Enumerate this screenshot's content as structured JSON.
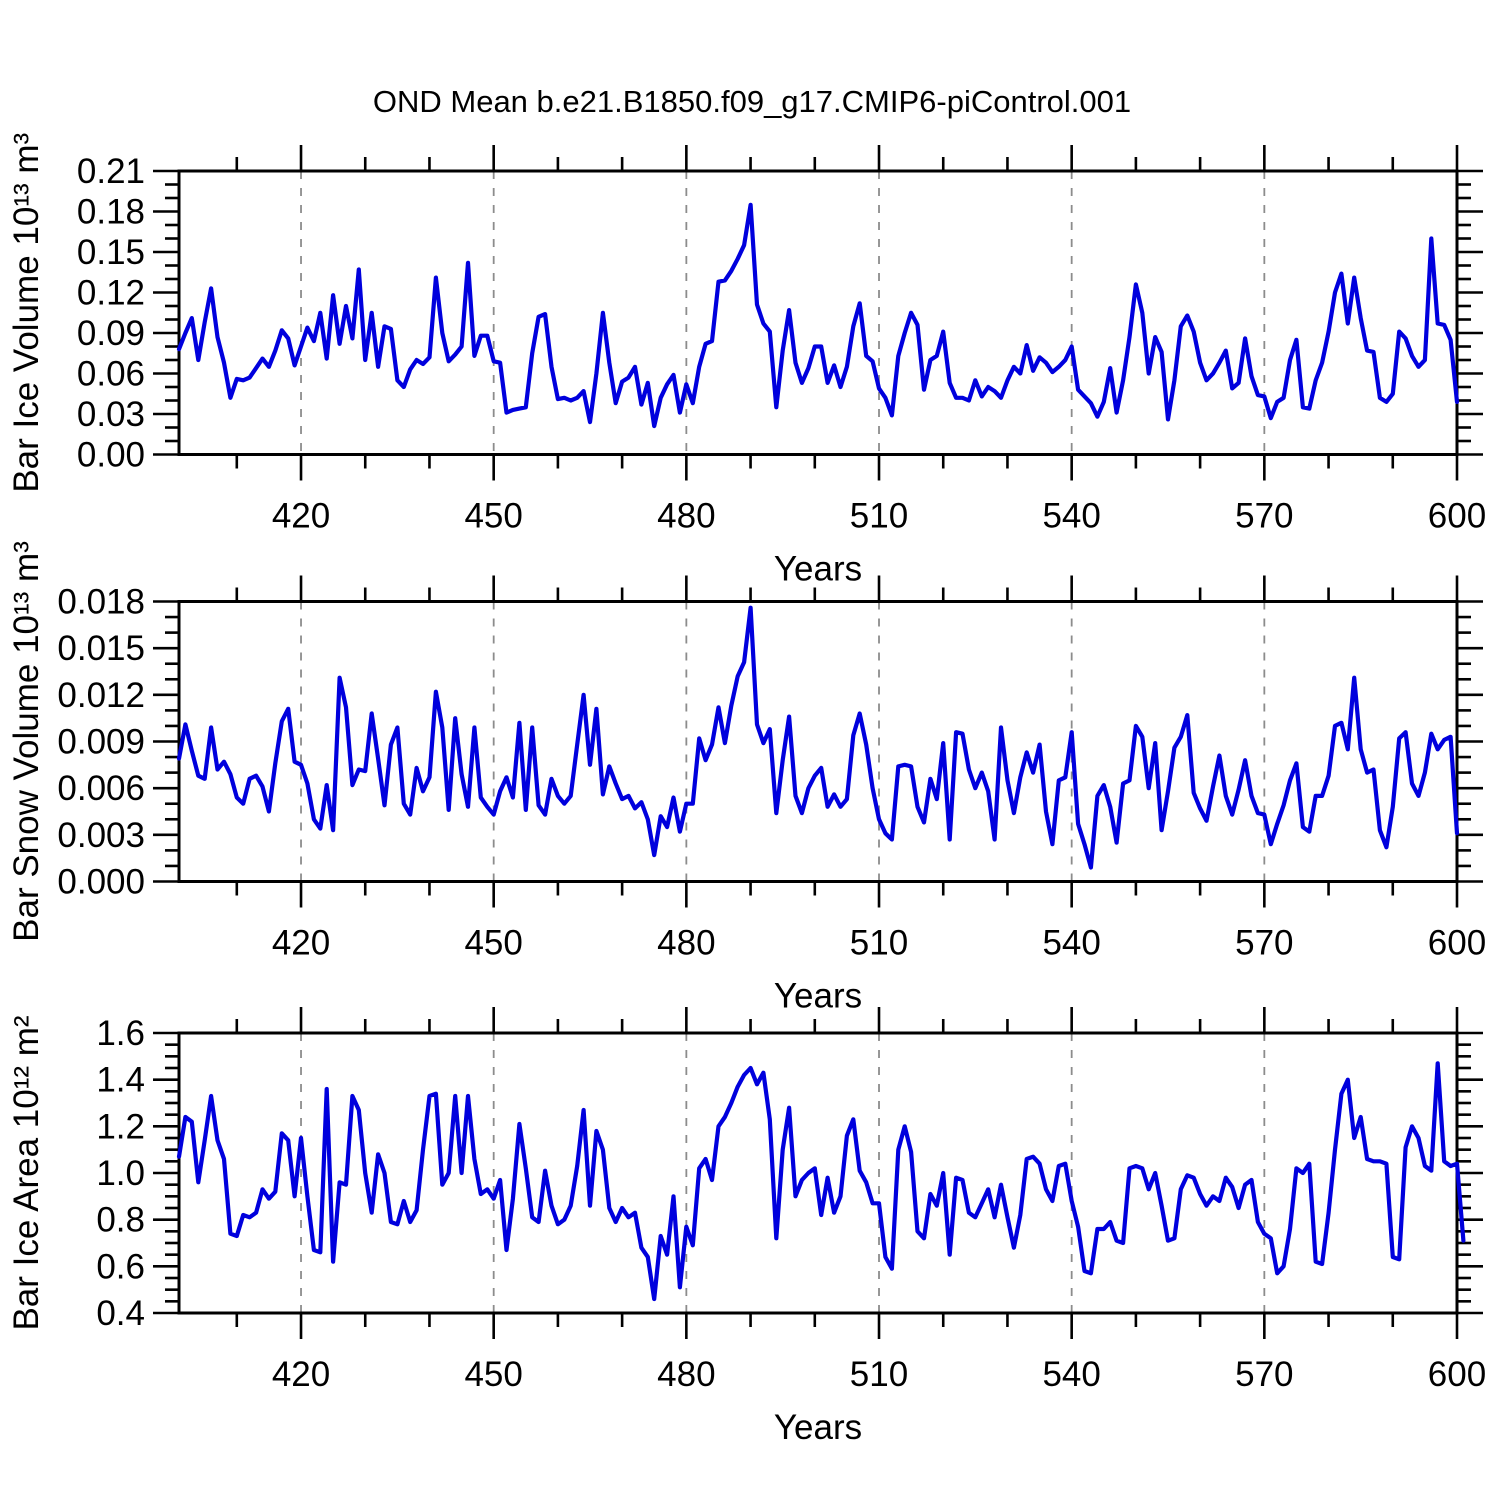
{
  "title": "OND Mean b.e21.B1850.f09_g17.CMIP6-piControl.001",
  "chart_data": {
    "type": "line",
    "title": "OND Mean b.e21.B1850.f09_g17.CMIP6-piControl.001",
    "xlabel": "Years",
    "x_start": 401,
    "x_end": 600,
    "xticks_major": [
      420,
      450,
      480,
      510,
      540,
      570,
      600
    ],
    "xtick_minor_step": 10,
    "grid": true,
    "legend_position": "none",
    "line_color": "#0000dd",
    "gridline_color": "#8c8c8c",
    "panels": [
      {
        "name": "ice-volume",
        "ylabel": "Bar Ice Volume 10¹³ m³",
        "ylim": [
          0,
          0.21
        ],
        "ytick_labels": [
          "0.00",
          "0.03",
          "0.06",
          "0.09",
          "0.12",
          "0.15",
          "0.18",
          "0.21"
        ],
        "ytick_minor_step": 0.01,
        "values": [
          0.078,
          0.09,
          0.101,
          0.07,
          0.098,
          0.123,
          0.087,
          0.068,
          0.042,
          0.056,
          0.055,
          0.057,
          0.064,
          0.071,
          0.065,
          0.077,
          0.092,
          0.086,
          0.066,
          0.08,
          0.094,
          0.084,
          0.105,
          0.071,
          0.118,
          0.082,
          0.11,
          0.086,
          0.137,
          0.07,
          0.105,
          0.065,
          0.095,
          0.093,
          0.055,
          0.05,
          0.063,
          0.07,
          0.067,
          0.072,
          0.131,
          0.09,
          0.069,
          0.074,
          0.08,
          0.142,
          0.073,
          0.088,
          0.088,
          0.069,
          0.068,
          0.031,
          0.033,
          0.034,
          0.035,
          0.075,
          0.102,
          0.104,
          0.065,
          0.041,
          0.042,
          0.04,
          0.042,
          0.047,
          0.024,
          0.06,
          0.105,
          0.068,
          0.038,
          0.054,
          0.057,
          0.065,
          0.037,
          0.053,
          0.021,
          0.042,
          0.052,
          0.059,
          0.031,
          0.052,
          0.038,
          0.065,
          0.082,
          0.084,
          0.128,
          0.129,
          0.136,
          0.145,
          0.155,
          0.185,
          0.111,
          0.097,
          0.091,
          0.035,
          0.077,
          0.107,
          0.068,
          0.053,
          0.064,
          0.08,
          0.08,
          0.053,
          0.066,
          0.05,
          0.065,
          0.095,
          0.112,
          0.073,
          0.069,
          0.049,
          0.042,
          0.029,
          0.073,
          0.09,
          0.105,
          0.096,
          0.048,
          0.07,
          0.073,
          0.091,
          0.053,
          0.042,
          0.042,
          0.04,
          0.055,
          0.043,
          0.05,
          0.047,
          0.042,
          0.055,
          0.065,
          0.06,
          0.081,
          0.062,
          0.072,
          0.068,
          0.061,
          0.065,
          0.07,
          0.08,
          0.048,
          0.043,
          0.038,
          0.028,
          0.039,
          0.064,
          0.031,
          0.055,
          0.087,
          0.126,
          0.105,
          0.06,
          0.087,
          0.076,
          0.026,
          0.055,
          0.095,
          0.103,
          0.091,
          0.068,
          0.055,
          0.06,
          0.068,
          0.077,
          0.049,
          0.053,
          0.086,
          0.058,
          0.044,
          0.043,
          0.027,
          0.039,
          0.042,
          0.07,
          0.085,
          0.035,
          0.034,
          0.055,
          0.068,
          0.091,
          0.12,
          0.134,
          0.097,
          0.131,
          0.101,
          0.077,
          0.076,
          0.042,
          0.039,
          0.045,
          0.091,
          0.086,
          0.073,
          0.065,
          0.07,
          0.16,
          0.097,
          0.096,
          0.085,
          0.039
        ]
      },
      {
        "name": "snow-volume",
        "ylabel": "Bar Snow Volume 10¹³ m³",
        "ylim": [
          0,
          0.018
        ],
        "ytick_labels": [
          "0.000",
          "0.003",
          "0.006",
          "0.009",
          "0.012",
          "0.015",
          "0.018"
        ],
        "ytick_minor_step": 0.001,
        "values": [
          0.0079,
          0.0101,
          0.0084,
          0.0068,
          0.0066,
          0.0099,
          0.0072,
          0.0077,
          0.0069,
          0.0054,
          0.005,
          0.0066,
          0.0068,
          0.0061,
          0.0045,
          0.0076,
          0.0103,
          0.0111,
          0.0077,
          0.0075,
          0.0063,
          0.004,
          0.0034,
          0.0062,
          0.0033,
          0.0131,
          0.0112,
          0.0062,
          0.0072,
          0.0071,
          0.0108,
          0.0079,
          0.0049,
          0.0088,
          0.0099,
          0.005,
          0.0043,
          0.0073,
          0.0058,
          0.0067,
          0.0122,
          0.0099,
          0.0046,
          0.0105,
          0.0069,
          0.0048,
          0.0099,
          0.0054,
          0.0048,
          0.0043,
          0.0058,
          0.0067,
          0.0054,
          0.0102,
          0.0046,
          0.0099,
          0.0049,
          0.0043,
          0.0066,
          0.0055,
          0.005,
          0.0055,
          0.0088,
          0.012,
          0.0075,
          0.0111,
          0.0056,
          0.0074,
          0.0063,
          0.0053,
          0.0055,
          0.0047,
          0.0051,
          0.004,
          0.0017,
          0.0042,
          0.0035,
          0.0054,
          0.0032,
          0.005,
          0.005,
          0.0092,
          0.0078,
          0.0088,
          0.0112,
          0.0089,
          0.0113,
          0.0132,
          0.0141,
          0.0176,
          0.0101,
          0.0089,
          0.0098,
          0.0044,
          0.0078,
          0.0106,
          0.0055,
          0.0044,
          0.006,
          0.0068,
          0.0073,
          0.0048,
          0.0056,
          0.0048,
          0.0053,
          0.0094,
          0.0108,
          0.0088,
          0.006,
          0.004,
          0.0031,
          0.0027,
          0.0074,
          0.0075,
          0.0074,
          0.0048,
          0.0038,
          0.0066,
          0.0053,
          0.0089,
          0.0027,
          0.0096,
          0.0095,
          0.0072,
          0.006,
          0.007,
          0.0058,
          0.0027,
          0.0099,
          0.0065,
          0.0044,
          0.0067,
          0.0083,
          0.007,
          0.0088,
          0.0045,
          0.0024,
          0.0065,
          0.0067,
          0.0096,
          0.0037,
          0.0024,
          0.0009,
          0.0055,
          0.0062,
          0.0048,
          0.0025,
          0.0063,
          0.0065,
          0.01,
          0.0093,
          0.006,
          0.0089,
          0.0033,
          0.0058,
          0.0086,
          0.0093,
          0.0107,
          0.0057,
          0.0047,
          0.0039,
          0.0061,
          0.0081,
          0.0055,
          0.0043,
          0.0059,
          0.0078,
          0.0055,
          0.0044,
          0.0043,
          0.0024,
          0.0037,
          0.0049,
          0.0065,
          0.0076,
          0.0035,
          0.0032,
          0.0055,
          0.0055,
          0.0068,
          0.01,
          0.0102,
          0.0085,
          0.0131,
          0.0085,
          0.007,
          0.0072,
          0.0033,
          0.0022,
          0.0048,
          0.0092,
          0.0096,
          0.0063,
          0.0055,
          0.007,
          0.0095,
          0.0085,
          0.0091,
          0.0093,
          0.0031
        ]
      },
      {
        "name": "ice-area",
        "ylabel": "Bar Ice Area 10¹² m²",
        "ylim": [
          0.4,
          1.6
        ],
        "ytick_labels": [
          "0.4",
          "0.6",
          "0.8",
          "1.0",
          "1.2",
          "1.4",
          "1.6"
        ],
        "ytick_minor_step": 0.05,
        "values": [
          1.07,
          1.24,
          1.22,
          0.96,
          1.14,
          1.33,
          1.14,
          1.06,
          0.74,
          0.73,
          0.82,
          0.81,
          0.83,
          0.93,
          0.89,
          0.92,
          1.17,
          1.14,
          0.9,
          1.15,
          0.9,
          0.67,
          0.66,
          1.36,
          0.62,
          0.96,
          0.95,
          1.33,
          1.27,
          1.0,
          0.83,
          1.08,
          1.0,
          0.79,
          0.78,
          0.88,
          0.79,
          0.84,
          1.1,
          1.33,
          1.34,
          0.95,
          1.0,
          1.33,
          1.0,
          1.33,
          1.06,
          0.91,
          0.93,
          0.89,
          0.97,
          0.67,
          0.89,
          1.21,
          1.02,
          0.81,
          0.79,
          1.01,
          0.86,
          0.78,
          0.8,
          0.86,
          1.03,
          1.27,
          0.86,
          1.18,
          1.1,
          0.85,
          0.79,
          0.85,
          0.81,
          0.83,
          0.68,
          0.64,
          0.46,
          0.73,
          0.65,
          0.9,
          0.51,
          0.77,
          0.69,
          1.02,
          1.06,
          0.97,
          1.2,
          1.24,
          1.3,
          1.37,
          1.42,
          1.45,
          1.38,
          1.43,
          1.23,
          0.72,
          1.1,
          1.28,
          0.9,
          0.97,
          1.0,
          1.02,
          0.82,
          0.98,
          0.83,
          0.9,
          1.16,
          1.23,
          1.01,
          0.96,
          0.87,
          0.87,
          0.64,
          0.59,
          1.1,
          1.2,
          1.09,
          0.75,
          0.72,
          0.91,
          0.86,
          1.0,
          0.65,
          0.98,
          0.97,
          0.83,
          0.81,
          0.87,
          0.93,
          0.81,
          0.95,
          0.81,
          0.68,
          0.82,
          1.06,
          1.07,
          1.04,
          0.93,
          0.88,
          1.03,
          1.04,
          0.88,
          0.77,
          0.58,
          0.57,
          0.76,
          0.76,
          0.79,
          0.71,
          0.7,
          1.02,
          1.03,
          1.02,
          0.93,
          1.0,
          0.86,
          0.71,
          0.72,
          0.93,
          0.99,
          0.98,
          0.91,
          0.86,
          0.9,
          0.88,
          0.98,
          0.94,
          0.85,
          0.95,
          0.97,
          0.79,
          0.74,
          0.72,
          0.57,
          0.6,
          0.76,
          1.02,
          1.0,
          1.04,
          0.62,
          0.61,
          0.83,
          1.1,
          1.34,
          1.4,
          1.15,
          1.24,
          1.06,
          1.05,
          1.05,
          1.04,
          0.64,
          0.63,
          1.11,
          1.2,
          1.15,
          1.03,
          1.01,
          1.47,
          1.05,
          1.03,
          1.04,
          0.71
        ]
      }
    ]
  }
}
